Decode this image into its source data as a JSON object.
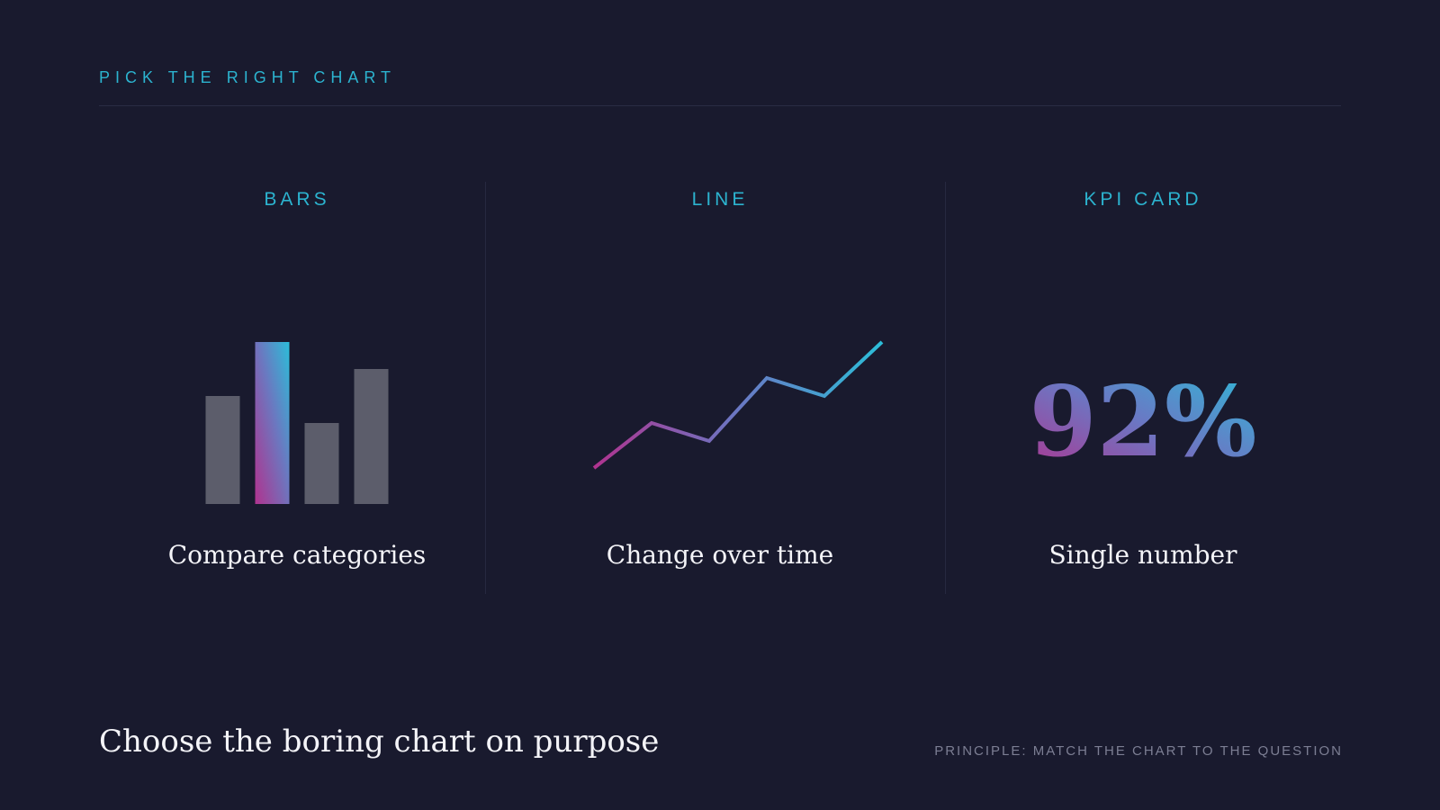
{
  "header": {
    "eyebrow": "PICK THE RIGHT CHART"
  },
  "columns": [
    {
      "heading": "BARS",
      "caption": "Compare categories"
    },
    {
      "heading": "LINE",
      "caption": "Change over time"
    },
    {
      "heading": "KPI CARD",
      "caption": "Single number"
    }
  ],
  "chart_data": [
    {
      "type": "bar",
      "values": [
        60,
        90,
        45,
        75
      ],
      "highlight_index": 1,
      "ylim": [
        0,
        90
      ]
    },
    {
      "type": "line",
      "x": [
        0,
        1,
        2,
        3,
        4,
        5
      ],
      "values": [
        20,
        45,
        35,
        70,
        60,
        90
      ],
      "ylim": [
        20,
        90
      ]
    }
  ],
  "kpi": {
    "value": "92%"
  },
  "footer": {
    "headline": "Choose the boring chart on purpose",
    "principle": "PRINCIPLE: MATCH THE CHART TO THE QUESTION"
  },
  "colors": {
    "background": "#191a2e",
    "accent": "#2cb3cf",
    "accent_gradient_start": "#b0338f",
    "accent_gradient_end": "#2cbdd8",
    "muted_bar": "#5c5d6b",
    "caption_text": "#f4f4f8",
    "muted_text": "#7c7e93"
  }
}
